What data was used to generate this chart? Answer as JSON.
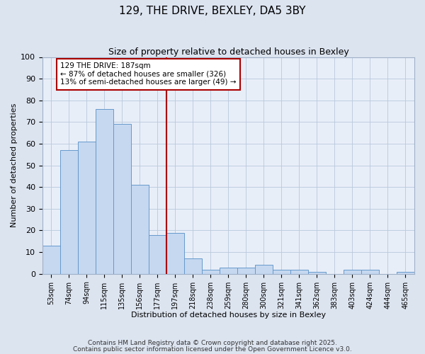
{
  "title1": "129, THE DRIVE, BEXLEY, DA5 3BY",
  "title2": "Size of property relative to detached houses in Bexley",
  "xlabel": "Distribution of detached houses by size in Bexley",
  "ylabel": "Number of detached properties",
  "categories": [
    "53sqm",
    "74sqm",
    "94sqm",
    "115sqm",
    "135sqm",
    "156sqm",
    "177sqm",
    "197sqm",
    "218sqm",
    "238sqm",
    "259sqm",
    "280sqm",
    "300sqm",
    "321sqm",
    "341sqm",
    "362sqm",
    "383sqm",
    "403sqm",
    "424sqm",
    "444sqm",
    "465sqm"
  ],
  "values": [
    13,
    57,
    61,
    76,
    69,
    41,
    18,
    19,
    7,
    2,
    3,
    3,
    4,
    2,
    2,
    1,
    0,
    2,
    2,
    0,
    1
  ],
  "bar_color": "#c5d8f0",
  "bar_edge_color": "#6699cc",
  "vline_color": "#aa0000",
  "annotation_text": "129 THE DRIVE: 187sqm\n← 87% of detached houses are smaller (326)\n13% of semi-detached houses are larger (49) →",
  "annotation_box_color": "#aa0000",
  "ylim": [
    0,
    100
  ],
  "yticks": [
    0,
    10,
    20,
    30,
    40,
    50,
    60,
    70,
    80,
    90,
    100
  ],
  "footer1": "Contains HM Land Registry data © Crown copyright and database right 2025.",
  "footer2": "Contains public sector information licensed under the Open Government Licence v3.0.",
  "bg_color": "#dce4f0",
  "plot_bg_color": "#e8eef8"
}
